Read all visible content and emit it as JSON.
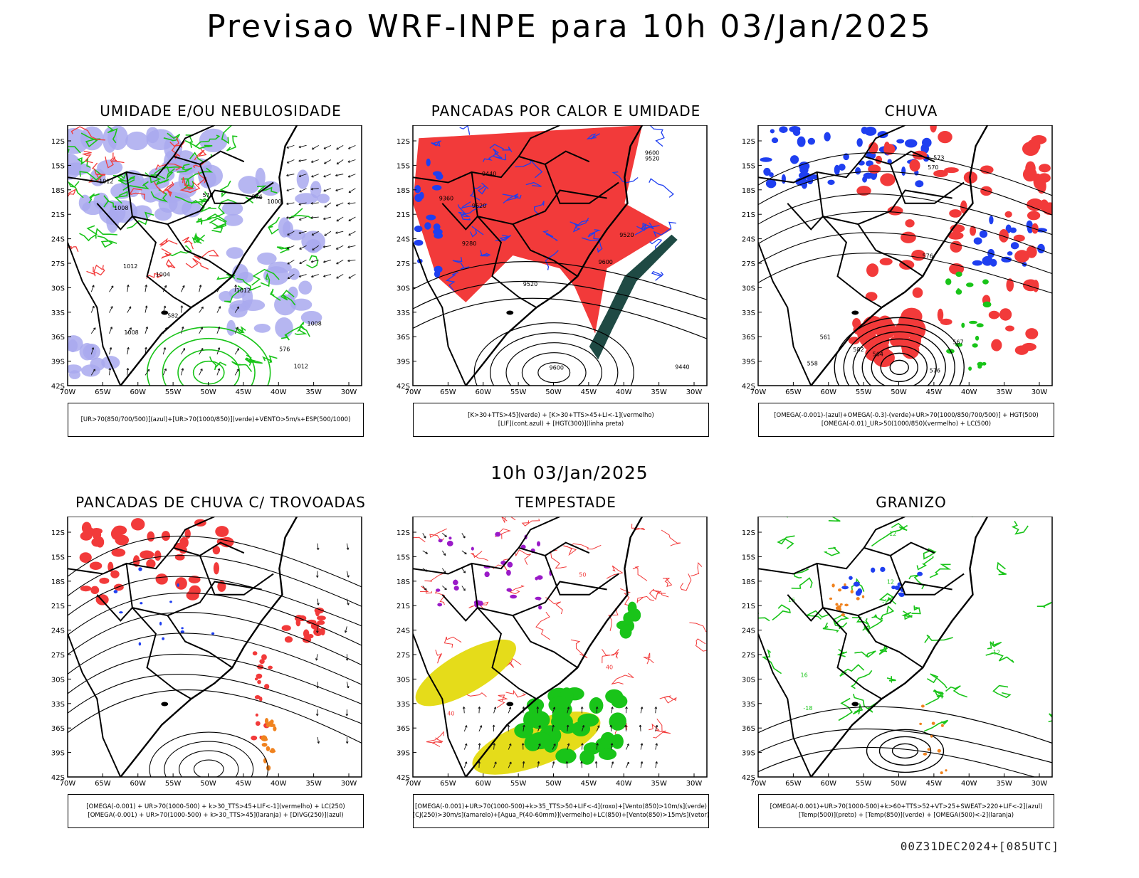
{
  "header": {
    "title": "Previsao WRF-INPE  para 10h 03/Jan/2025",
    "mid_date": "10h 03/Jan/2025",
    "run_stamp": "00Z31DEC2024+[085UTC]"
  },
  "axes": {
    "lat_labels": [
      "12S",
      "15S",
      "18S",
      "21S",
      "24S",
      "27S",
      "30S",
      "33S",
      "36S",
      "39S",
      "42S"
    ],
    "lon_labels": [
      "70W",
      "65W",
      "60W",
      "55W",
      "50W",
      "45W",
      "40W",
      "35W",
      "30W"
    ]
  },
  "colors": {
    "red": "#f23a3a",
    "blue": "#1f3ff0",
    "green": "#19c419",
    "lavender": "#a9a9ef",
    "yellow": "#e5dc1a",
    "purple": "#9a1ac8",
    "orange": "#f0821e",
    "dark_teal": "#1f4a44"
  },
  "panels": [
    {
      "id": "umidade",
      "title": "UMIDADE E/OU NEBULOSIDADE",
      "legend": [
        "[UR>70(850/700/500)](azul)+[UR>70(1000/850)](verde)+VENTO>5m/s+ESP(500/1000)"
      ],
      "contour_labels": [
        "1012",
        "1012",
        "1012",
        "1012",
        "1008",
        "1008",
        "1008",
        "1004",
        "1000",
        "570",
        "576",
        "576",
        "582"
      ]
    },
    {
      "id": "pancadas-calor",
      "title": "PANCADAS POR CALOR E UMIDADE",
      "legend": [
        "[K>30+TTS>45](verde) + [K>30+TTS>45+LI<-1](vermelho)",
        "[LIF](cont.azul) + [HGT(300)](linha preta)"
      ],
      "contour_labels": [
        "9600",
        "9600",
        "9600",
        "9520",
        "9520",
        "9520",
        "9440",
        "9440",
        "9360",
        "9280",
        "9520"
      ]
    },
    {
      "id": "chuva",
      "title": "CHUVA",
      "legend": [
        "[OMEGA(-0.001)-(azul)+OMEGA(-0.3)-(verde)+UR>70(1000/850/700/500)] + HGT(500)",
        "[OMEGA(-0.01)_UR>50(1000/850)(vermelho) + LC(500)"
      ],
      "contour_labels": [
        "582",
        "576",
        "576",
        "573",
        "570",
        "567",
        "564",
        "561",
        "558"
      ]
    },
    {
      "id": "pancadas-trovoadas",
      "title": "PANCADAS DE CHUVA C/ TROVOADAS",
      "legend": [
        "[OMEGA(-0.001) + UR>70(1000-500) + k>30_TTS>45+LIF<-1](vermelho) + LC(250)",
        "[OMEGA(-0.001) + UR>70(1000-500) + k>30_TTS>45](laranja) + [DIVG(250)](azul)"
      ],
      "contour_labels": []
    },
    {
      "id": "tempestade",
      "title": "TEMPESTADE",
      "legend": [
        "[OMEGA(-0.001)+UR>70(1000-500)+k>35_TTS>50+LIF<-4](roxo)+[Vento(850)>10m/s](verde)",
        "[CJ(250)>30m/s](amarelo)+[Agua_P(40-60mm)](vermelho)+LC(850)+[Vento(850)>15m/s](vetor)"
      ],
      "contour_labels": [
        "40",
        "40",
        "50"
      ]
    },
    {
      "id": "granizo",
      "title": "GRANIZO",
      "legend": [
        "[OMEGA(-0.001)+UR>70(1000-500)+k>60+TTS>52+VT>25+SWEAT>220+LIF<-2](azul)",
        "[Temp(500)](preto) + [Temp(850)](verde) + [OMEGA(500)<-2](laranja)"
      ],
      "contour_labels": [
        "-12",
        "-12",
        "-18",
        "12",
        "16",
        "16",
        "12"
      ]
    }
  ]
}
